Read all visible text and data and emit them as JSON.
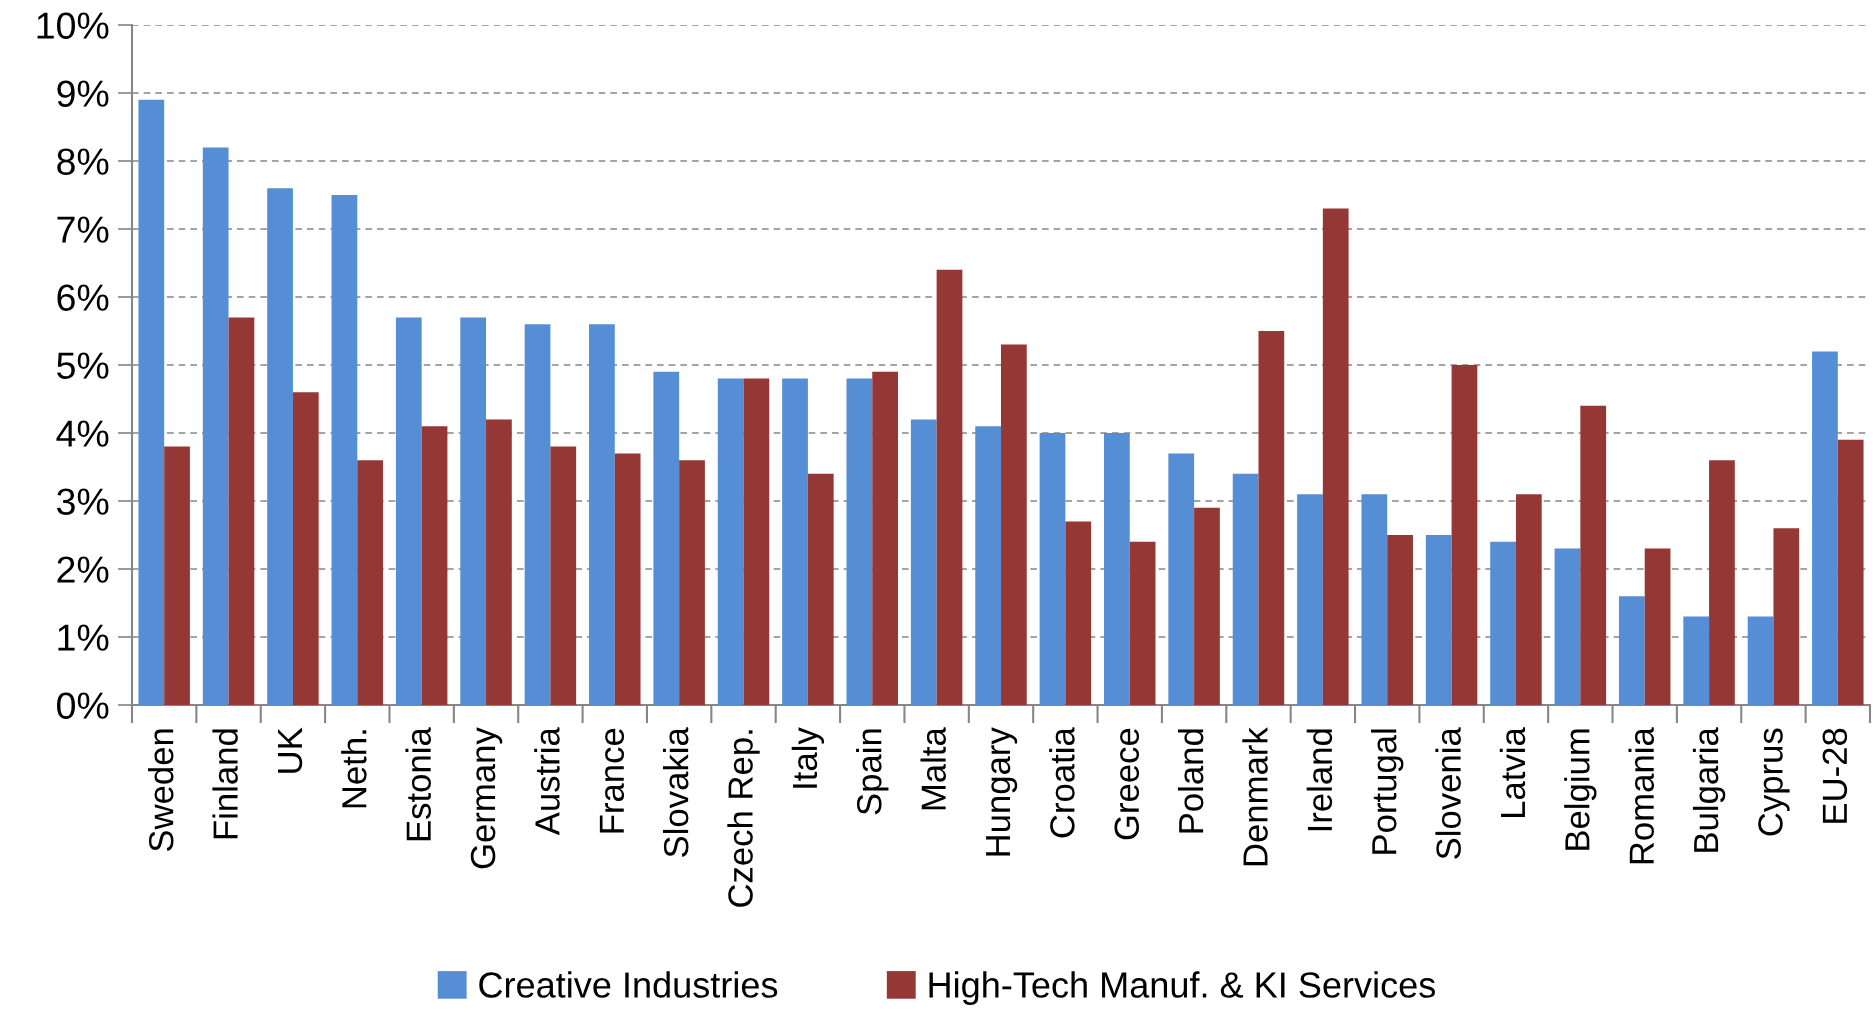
{
  "chart_data": {
    "type": "bar",
    "categories": [
      "Sweden",
      "Finland",
      "UK",
      "Neth.",
      "Estonia",
      "Germany",
      "Austria",
      "France",
      "Slovakia",
      "Czech Rep.",
      "Italy",
      "Spain",
      "Malta",
      "Hungary",
      "Croatia",
      "Greece",
      "Poland",
      "Denmark",
      "Ireland",
      "Portugal",
      "Slovenia",
      "Latvia",
      "Belgium",
      "Romania",
      "Bulgaria",
      "Cyprus",
      "EU-28"
    ],
    "series": [
      {
        "name": "Creative Industries",
        "color": "#558ed5",
        "values": [
          8.9,
          8.2,
          7.6,
          7.5,
          5.7,
          5.7,
          5.6,
          5.6,
          4.9,
          4.8,
          4.8,
          4.8,
          4.2,
          4.1,
          4.0,
          4.0,
          3.7,
          3.4,
          3.1,
          3.1,
          2.5,
          2.4,
          2.3,
          1.6,
          1.3,
          1.3,
          5.2
        ]
      },
      {
        "name": "High-Tech Manuf. & KI Services",
        "color": "#953735",
        "values": [
          3.8,
          5.7,
          4.6,
          3.6,
          4.1,
          4.2,
          3.8,
          3.7,
          3.6,
          4.8,
          3.4,
          4.9,
          6.4,
          5.3,
          2.7,
          2.4,
          2.9,
          5.5,
          7.3,
          2.5,
          5.0,
          3.1,
          4.4,
          2.3,
          3.6,
          2.6,
          3.9
        ]
      }
    ],
    "ylim": [
      0,
      10
    ],
    "yticks": [
      {
        "value": 0,
        "label": "0%"
      },
      {
        "value": 1,
        "label": "1%"
      },
      {
        "value": 2,
        "label": "2%"
      },
      {
        "value": 3,
        "label": "3%"
      },
      {
        "value": 4,
        "label": "4%"
      },
      {
        "value": 5,
        "label": "5%"
      },
      {
        "value": 6,
        "label": "6%"
      },
      {
        "value": 7,
        "label": "7%"
      },
      {
        "value": 8,
        "label": "8%"
      },
      {
        "value": 9,
        "label": "9%"
      },
      {
        "value": 10,
        "label": "10%"
      }
    ],
    "grid": "y",
    "legend": "bottom"
  }
}
